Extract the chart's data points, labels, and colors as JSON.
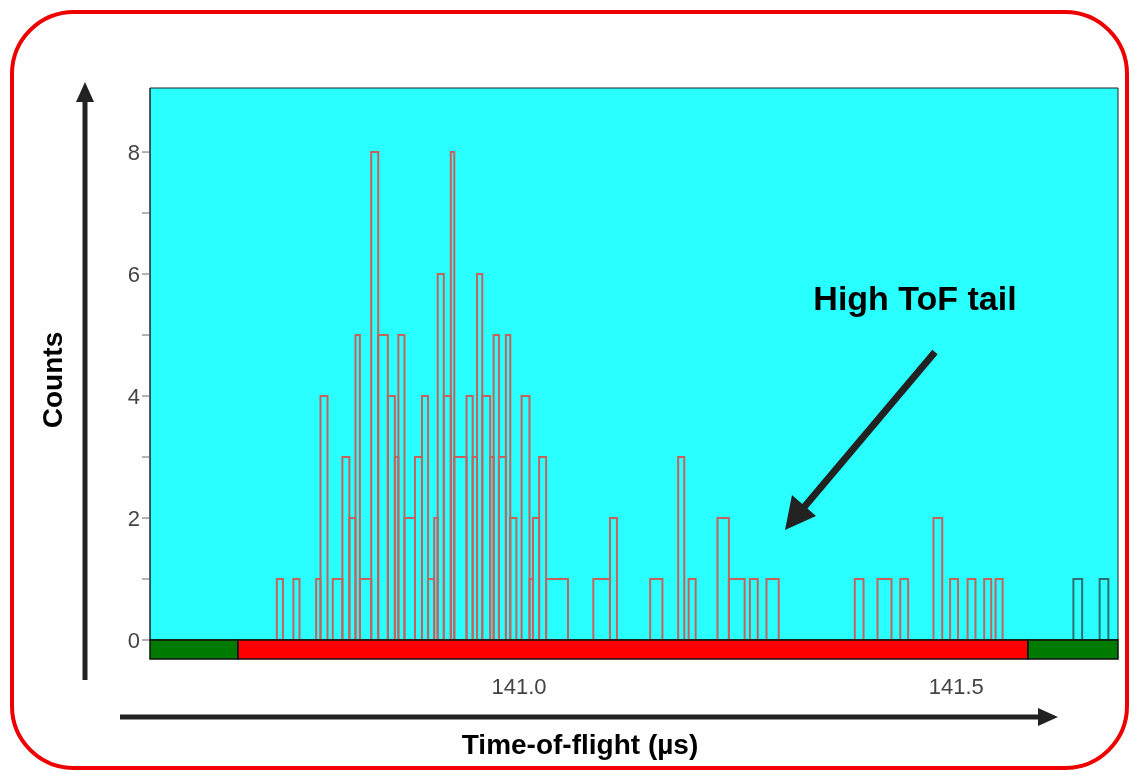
{
  "chart_data": {
    "type": "histogram",
    "xlabel": "Time-of-flight (µs)",
    "ylabel": "Counts",
    "bins": [
      140.723,
      140.73,
      140.742,
      140.749,
      140.768,
      140.773,
      140.781,
      140.787,
      140.798,
      140.806,
      140.813,
      140.818,
      140.831,
      140.839,
      140.85,
      140.858,
      140.862,
      140.869,
      140.881,
      140.889,
      140.896,
      140.903,
      140.907,
      140.914,
      140.922,
      140.926,
      140.94,
      140.947,
      140.952,
      140.958,
      140.967,
      140.971,
      140.977,
      140.985,
      140.99,
      140.997,
      141.003,
      141.012,
      141.016,
      141.023,
      141.031,
      141.056,
      141.085,
      141.104,
      141.112,
      141.15,
      141.164,
      141.182,
      141.189,
      141.194,
      141.202,
      141.227,
      141.24,
      141.258,
      141.264,
      141.273,
      141.283,
      141.297,
      141.384,
      141.394,
      141.41,
      141.426,
      141.436,
      141.445,
      141.474,
      141.484,
      141.493,
      141.502,
      141.513,
      141.522,
      141.532,
      141.54,
      141.545,
      141.553,
      141.634,
      141.644,
      141.664,
      141.674
    ],
    "values": [
      1,
      0,
      1,
      0,
      1,
      4,
      0,
      1,
      3,
      2,
      5,
      1,
      8,
      5,
      4,
      3,
      5,
      2,
      3,
      4,
      1,
      2,
      6,
      4,
      8,
      3,
      4,
      3,
      6,
      4,
      3,
      5,
      3,
      5,
      2,
      0,
      4,
      1,
      2,
      3,
      1,
      0,
      1,
      2,
      0,
      1,
      0,
      3,
      0,
      1,
      0,
      2,
      1,
      0,
      1,
      0,
      1,
      0,
      1,
      0,
      1,
      0,
      1,
      0,
      2,
      0,
      1,
      0,
      1,
      0,
      1,
      0,
      1,
      0,
      1,
      0,
      1
    ],
    "colors": [
      "#c8605c",
      "#c8605c",
      "#c8605c",
      "#c8605c",
      "#c8605c",
      "#c8605c",
      "#c8605c",
      "#c8605c",
      "#c8605c",
      "#c8605c",
      "#c8605c",
      "#c8605c",
      "#c8605c",
      "#c8605c",
      "#c8605c",
      "#c8605c",
      "#c8605c",
      "#c8605c",
      "#c8605c",
      "#c8605c",
      "#c8605c",
      "#c8605c",
      "#c8605c",
      "#c8605c",
      "#c8605c",
      "#c8605c",
      "#c8605c",
      "#c8605c",
      "#c8605c",
      "#c8605c",
      "#c8605c",
      "#c8605c",
      "#c8605c",
      "#c8605c",
      "#c8605c",
      "#c8605c",
      "#c8605c",
      "#c8605c",
      "#c8605c",
      "#c8605c",
      "#c8605c",
      "#c8605c",
      "#c8605c",
      "#c8605c",
      "#c8605c",
      "#c8605c",
      "#c8605c",
      "#c8605c",
      "#c8605c",
      "#c8605c",
      "#c8605c",
      "#c8605c",
      "#c8605c",
      "#c8605c",
      "#c8605c",
      "#c8605c",
      "#c8605c",
      "#c8605c",
      "#c8605c",
      "#c8605c",
      "#c8605c",
      "#c8605c",
      "#c8605c",
      "#c8605c",
      "#c8605c",
      "#c8605c",
      "#c8605c",
      "#c8605c",
      "#c8605c",
      "#c8605c",
      "#c8605c",
      "#c8605c",
      "#c8605c",
      "#c8605c",
      "#2e6e6e",
      "#2e6e6e",
      "#2e6e6e"
    ],
    "xlim": [
      140.578,
      141.685
    ],
    "xticks": [
      {
        "value": 141,
        "label": "141.0"
      },
      141.5
    ],
    "ylim": [
      0,
      9.05
    ],
    "yticks": [
      0,
      {
        "value": 1,
        "label": null
      },
      2,
      {
        "value": 3,
        "label": null
      },
      4,
      {
        "value": 5,
        "label": null
      },
      6,
      {
        "value": 7,
        "label": null
      },
      8
    ],
    "annotations": [
      "High ToF tail"
    ],
    "grid": false
  }
}
